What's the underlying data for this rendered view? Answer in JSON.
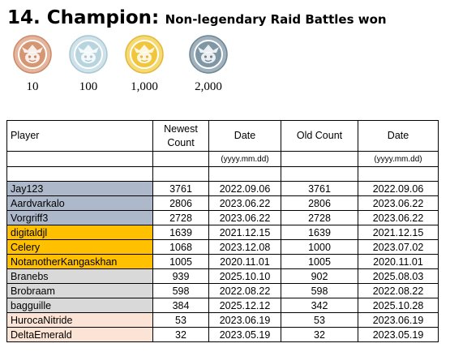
{
  "header": {
    "title": "14. Champion:",
    "subtitle": "Non-legendary Raid Battles won"
  },
  "medals": [
    {
      "label": "10",
      "tier": "bronze",
      "ring": "#e6b49a",
      "ring_dark": "#c98a6c",
      "face": "#d69573",
      "icon": "bronze-medal-icon"
    },
    {
      "label": "100",
      "tier": "silver",
      "ring": "#cfe2ea",
      "ring_dark": "#a9c6d3",
      "face": "#b7d4df",
      "icon": "silver-medal-icon"
    },
    {
      "label": "1,000",
      "tier": "gold",
      "ring": "#f5d971",
      "ring_dark": "#e3b83a",
      "face": "#f2c63c",
      "icon": "gold-medal-icon"
    },
    {
      "label": "2,000",
      "tier": "platinum",
      "ring": "#9fb1bd",
      "ring_dark": "#6f8594",
      "face": "#7f96a4",
      "icon": "platinum-medal-icon"
    }
  ],
  "table": {
    "headers": {
      "player": "Player",
      "newest_count": "Newest Count",
      "date1": "Date",
      "old_count": "Old Count",
      "date2": "Date"
    },
    "date_format": "(yyyy.mm.dd)",
    "tier_colors": {
      "platinum": "#adb9ca",
      "gold": "#ffc000",
      "silver": "#d9d9d9",
      "bronze": "#fbe4d5"
    },
    "rows": [
      {
        "player": "Jay123",
        "newest": "3761",
        "date1": "2022.09.06",
        "old": "3761",
        "date2": "2022.09.06",
        "tier": "platinum"
      },
      {
        "player": "Aardvarkalo",
        "newest": "2806",
        "date1": "2023.06.22",
        "old": "2806",
        "date2": "2023.06.22",
        "tier": "platinum"
      },
      {
        "player": "Vorgriff3",
        "newest": "2728",
        "date1": "2023.06.22",
        "old": "2728",
        "date2": "2023.06.22",
        "tier": "platinum"
      },
      {
        "player": "digitaldjl",
        "newest": "1639",
        "date1": "2021.12.15",
        "old": "1639",
        "date2": "2021.12.15",
        "tier": "gold"
      },
      {
        "player": "Celery",
        "newest": "1068",
        "date1": "2023.12.08",
        "old": "1000",
        "date2": "2023.07.02",
        "tier": "gold"
      },
      {
        "player": "NotanotherKangaskhan",
        "newest": "1005",
        "date1": "2020.11.01",
        "old": "1005",
        "date2": "2020.11.01",
        "tier": "gold"
      },
      {
        "player": "Branebs",
        "newest": "939",
        "date1": "2025.10.10",
        "old": "902",
        "date2": "2025.08.03",
        "tier": "silver"
      },
      {
        "player": "Brobraam",
        "newest": "598",
        "date1": "2022.08.22",
        "old": "598",
        "date2": "2022.08.22",
        "tier": "silver"
      },
      {
        "player": "bagguille",
        "newest": "384",
        "date1": "2025.12.12",
        "old": "342",
        "date2": "2025.10.28",
        "tier": "silver"
      },
      {
        "player": "HurocaNitride",
        "newest": "53",
        "date1": "2023.06.19",
        "old": "53",
        "date2": "2023.06.19",
        "tier": "bronze"
      },
      {
        "player": "DeltaEmerald",
        "newest": "32",
        "date1": "2023.05.19",
        "old": "32",
        "date2": "2023.05.19",
        "tier": "bronze"
      }
    ]
  }
}
